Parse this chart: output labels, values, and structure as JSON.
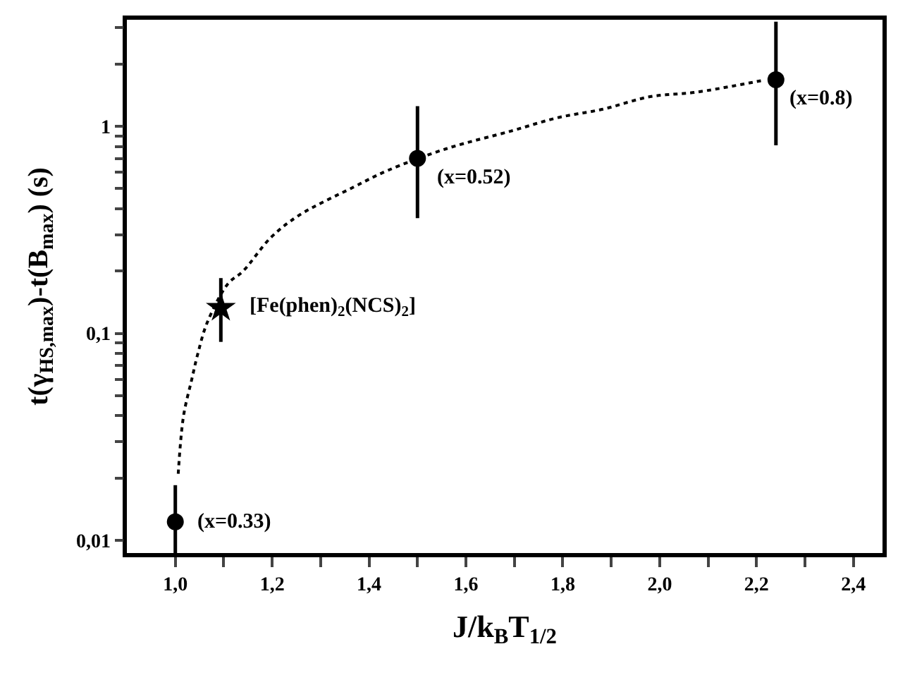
{
  "chart_data": {
    "type": "scatter",
    "xlabel": "J/k$_{B}$T$_{1/2}$",
    "ylabel": "t(γ$_{HS,max}$)-t(B$_{max}$) (s)",
    "log": "y",
    "xlim": [
      0.9,
      2.46
    ],
    "ylim": [
      0.0087,
      3.27
    ],
    "xticks": [
      {
        "value": 1.0,
        "label": "1,0"
      },
      {
        "value": 1.1,
        "label": null
      },
      {
        "value": 1.2,
        "label": "1,2"
      },
      {
        "value": 1.3,
        "label": null
      },
      {
        "value": 1.4,
        "label": "1,4"
      },
      {
        "value": 1.5,
        "label": null
      },
      {
        "value": 1.6,
        "label": "1,6"
      },
      {
        "value": 1.7,
        "label": null
      },
      {
        "value": 1.8,
        "label": "1,8"
      },
      {
        "value": 1.9,
        "label": null
      },
      {
        "value": 2.0,
        "label": "2,0"
      },
      {
        "value": 2.1,
        "label": null
      },
      {
        "value": 2.2,
        "label": "2,2"
      },
      {
        "value": 2.3,
        "label": null
      },
      {
        "value": 2.4,
        "label": "2,4"
      }
    ],
    "yticks": [
      {
        "value": 0.01,
        "label": "0,01"
      },
      {
        "value": 0.02,
        "label": null
      },
      {
        "value": 0.03,
        "label": null
      },
      {
        "value": 0.04,
        "label": null
      },
      {
        "value": 0.05,
        "label": null
      },
      {
        "value": 0.06,
        "label": null
      },
      {
        "value": 0.07,
        "label": null
      },
      {
        "value": 0.08,
        "label": null
      },
      {
        "value": 0.09,
        "label": null
      },
      {
        "value": 0.1,
        "label": "0,1"
      },
      {
        "value": 0.2,
        "label": null
      },
      {
        "value": 0.3,
        "label": null
      },
      {
        "value": 0.4,
        "label": null
      },
      {
        "value": 0.5,
        "label": null
      },
      {
        "value": 0.6,
        "label": null
      },
      {
        "value": 0.7,
        "label": null
      },
      {
        "value": 0.8,
        "label": null
      },
      {
        "value": 0.9,
        "label": null
      },
      {
        "value": 1,
        "label": "1"
      },
      {
        "value": 2,
        "label": null
      },
      {
        "value": 3,
        "label": null
      }
    ],
    "series": [
      {
        "type": "line",
        "line_style": "dotted",
        "marker": "none",
        "color": "#000000",
        "x": [
          1.006,
          1.017,
          1.034,
          1.046,
          1.066,
          1.109,
          1.14,
          1.197,
          1.254,
          1.369,
          1.437,
          1.56,
          1.694,
          1.789,
          1.883,
          1.98,
          2.074,
          2.209
        ],
        "values": [
          0.021,
          0.04,
          0.06,
          0.079,
          0.113,
          0.174,
          0.2,
          0.29,
          0.37,
          0.51,
          0.61,
          0.78,
          0.95,
          1.1,
          1.21,
          1.39,
          1.46,
          1.66
        ]
      },
      {
        "marker": "circle",
        "color": "#000000",
        "x": [
          1.0,
          1.5,
          2.24
        ],
        "values": [
          0.0123,
          0.7,
          1.68
        ],
        "errors": [
          [
            0.0087,
            0.0185
          ],
          [
            0.36,
            1.25
          ],
          [
            0.81,
            3.2
          ]
        ]
      },
      {
        "marker": "star",
        "color": "#000000",
        "x": [
          1.094
        ],
        "values": [
          0.133
        ],
        "errors": [
          [
            0.091,
            0.185
          ]
        ]
      }
    ],
    "annotations": [
      {
        "text": "(x=0.33)",
        "x": 1.0,
        "y": 0.0123
      },
      {
        "text": "[Fe(phen)$_{2}$(NCS)$_{2}$]",
        "x": 1.094,
        "y": 0.133
      },
      {
        "text": "(x=0.52)",
        "x": 1.5,
        "y": 0.7
      },
      {
        "text": "(x=0.8)",
        "x": 2.24,
        "y": 1.68
      }
    ]
  }
}
